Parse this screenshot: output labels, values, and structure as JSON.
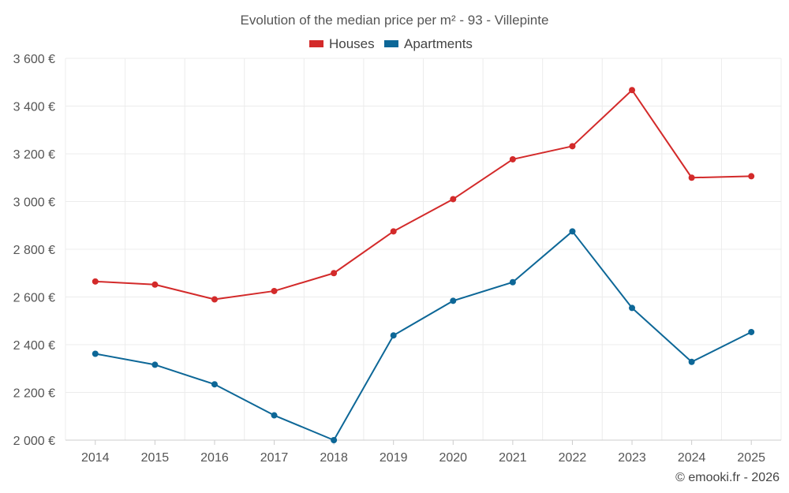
{
  "chart_data": {
    "type": "line",
    "title": "Evolution of the median price per m² - 93 - Villepinte",
    "categories": [
      "2014",
      "2015",
      "2016",
      "2017",
      "2018",
      "2019",
      "2020",
      "2021",
      "2022",
      "2023",
      "2024",
      "2025"
    ],
    "series": [
      {
        "name": "Houses",
        "color": "#d32a2a",
        "values": [
          2665,
          2652,
          2590,
          2625,
          2700,
          2875,
          3010,
          3177,
          3232,
          3467,
          3100,
          3106
        ]
      },
      {
        "name": "Apartments",
        "color": "#0d6797",
        "values": [
          2362,
          2316,
          2234,
          2104,
          2000,
          2439,
          2584,
          2662,
          2875,
          2554,
          2328,
          2453
        ]
      }
    ],
    "ylim": [
      2000,
      3600
    ],
    "yticks": [
      2000,
      2200,
      2400,
      2600,
      2800,
      3000,
      3200,
      3400,
      3600
    ],
    "ytick_labels": [
      "2 000 €",
      "2 200 €",
      "2 400 €",
      "2 600 €",
      "2 800 €",
      "3 000 €",
      "3 200 €",
      "3 400 €",
      "3 600 €"
    ],
    "xlabel": "",
    "ylabel": "",
    "grid": true,
    "legend": "top-center"
  },
  "credit": "© emooki.fr - 2026"
}
